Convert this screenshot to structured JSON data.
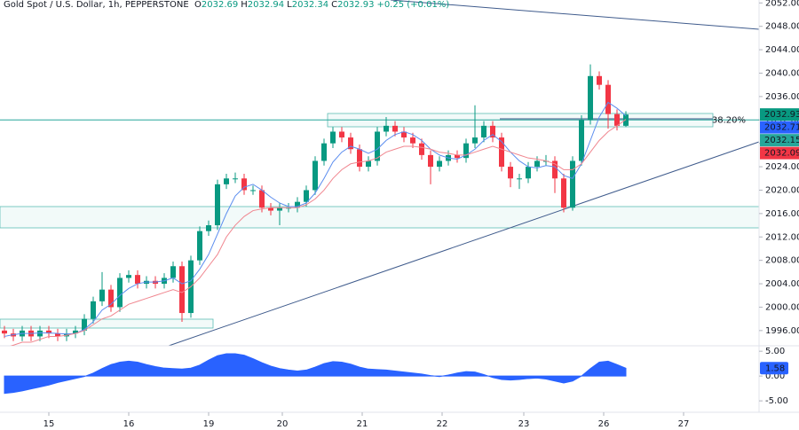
{
  "chart_data": {
    "type": "candlestick",
    "title": "Gold Spot / U.S. Dollar, 1h, PEPPERSTONE",
    "ohlc_legend": [
      {
        "label": "O",
        "value": 2032.69
      },
      {
        "label": "H",
        "value": 2032.94
      },
      {
        "label": "L",
        "value": 2032.34
      },
      {
        "label": "C",
        "value": 2032.93
      }
    ],
    "change": "+0.25 (+0.01%)",
    "up_color": "#089981",
    "down_color": "#f23645",
    "candles": [
      [
        1996,
        1996.8,
        1994.7,
        1995.5
      ],
      [
        1995.5,
        1996.3,
        1994.2,
        1995
      ],
      [
        1995,
        1996.8,
        1994.2,
        1996
      ],
      [
        1996,
        1996.8,
        1994.2,
        1995
      ],
      [
        1995,
        1996.8,
        1994.2,
        1996
      ],
      [
        1996,
        1996.8,
        1994.7,
        1995.5
      ],
      [
        1995.5,
        1996.3,
        1994.2,
        1995
      ],
      [
        1995,
        1996.3,
        1994.2,
        1995.5
      ],
      [
        1995.5,
        1996.8,
        1994.7,
        1996
      ],
      [
        1996,
        1998.8,
        1995.2,
        1998
      ],
      [
        1998,
        2001.8,
        1997.2,
        2001
      ],
      [
        2001,
        2006,
        2000.2,
        2003
      ],
      [
        2003,
        2003.8,
        1999.2,
        2000
      ],
      [
        2000,
        2005.8,
        1999.2,
        2005
      ],
      [
        2005,
        2006.3,
        2004.2,
        2005.5
      ],
      [
        2005.5,
        2006.3,
        2003.2,
        2004
      ],
      [
        2004,
        2005.3,
        2003.2,
        2004.5
      ],
      [
        2004.5,
        2005.3,
        2003.2,
        2004
      ],
      [
        2004,
        2005.8,
        2003.2,
        2005
      ],
      [
        2005,
        2007.8,
        2004.2,
        2007
      ],
      [
        2007,
        2007.8,
        1997.5,
        1999
      ],
      [
        1999,
        2008.8,
        1998.2,
        2008
      ],
      [
        2008,
        2013.8,
        2007.2,
        2013
      ],
      [
        2013,
        2014.8,
        2012.2,
        2014
      ],
      [
        2014,
        2021.8,
        2013.2,
        2021
      ],
      [
        2021,
        2022.8,
        2020.2,
        2022
      ],
      [
        2022,
        2023,
        2021.2,
        2022
      ],
      [
        2022,
        2022.8,
        2019.2,
        2020
      ],
      [
        2020,
        2020.8,
        2019.2,
        2020
      ],
      [
        2020,
        2020.8,
        2016.2,
        2017
      ],
      [
        2017,
        2017.8,
        2015.7,
        2016.5
      ],
      [
        2016.5,
        2017.8,
        2014,
        2017
      ],
      [
        2017,
        2017.8,
        2016.2,
        2017
      ],
      [
        2017,
        2018.8,
        2016.2,
        2018
      ],
      [
        2018,
        2020.8,
        2017.2,
        2020
      ],
      [
        2020,
        2025.8,
        2019.2,
        2025
      ],
      [
        2025,
        2028.8,
        2024.2,
        2028
      ],
      [
        2028,
        2030.8,
        2027.2,
        2030
      ],
      [
        2030,
        2030.8,
        2028.2,
        2029
      ],
      [
        2029,
        2029.8,
        2026.2,
        2027
      ],
      [
        2027,
        2027.8,
        2023.2,
        2024
      ],
      [
        2024,
        2025.8,
        2023.2,
        2025
      ],
      [
        2025,
        2030.8,
        2024.2,
        2030
      ],
      [
        2030,
        2032.5,
        2029.2,
        2031
      ],
      [
        2031,
        2031.8,
        2029.2,
        2030
      ],
      [
        2030,
        2030.8,
        2028.2,
        2029
      ],
      [
        2029,
        2029.8,
        2027.2,
        2028
      ],
      [
        2028,
        2028.8,
        2025.2,
        2026
      ],
      [
        2026,
        2026.8,
        2021,
        2024
      ],
      [
        2024,
        2025.8,
        2023.2,
        2025
      ],
      [
        2025,
        2026.8,
        2024.2,
        2026
      ],
      [
        2026,
        2026.8,
        2024.7,
        2025.5
      ],
      [
        2025.5,
        2028.8,
        2024.7,
        2028
      ],
      [
        2028,
        2034.5,
        2027.2,
        2029
      ],
      [
        2029,
        2031.8,
        2028.2,
        2031
      ],
      [
        2031,
        2031.8,
        2028.2,
        2029
      ],
      [
        2029,
        2029.8,
        2023.2,
        2024
      ],
      [
        2024,
        2024.8,
        2020.5,
        2022
      ],
      [
        2022,
        2022.8,
        2020.2,
        2022
      ],
      [
        2022,
        2024.8,
        2021.2,
        2024
      ],
      [
        2024,
        2025.8,
        2023.2,
        2025
      ],
      [
        2025,
        2026,
        2024.2,
        2025
      ],
      [
        2025,
        2025.8,
        2019.5,
        2022
      ],
      [
        2022,
        2022.8,
        2016.2,
        2017
      ],
      [
        2017,
        2025.8,
        2016.5,
        2025
      ],
      [
        2025,
        2032.8,
        2024.2,
        2032
      ],
      [
        2032,
        2041.5,
        2031.2,
        2039.5
      ],
      [
        2039.5,
        2040.3,
        2037.2,
        2038
      ],
      [
        2038,
        2038.8,
        2030.5,
        2033
      ],
      [
        2033,
        2033.8,
        2030.2,
        2031
      ],
      [
        2031,
        2033.5,
        2030.8,
        2032.93
      ]
    ],
    "moving_averages": [
      {
        "color": "#5b8def",
        "values": [
          1995,
          1995.3,
          1995.5,
          1995.5,
          1995.6,
          1995.6,
          1995.5,
          1995.4,
          1995.5,
          1996.2,
          1997.5,
          1999.5,
          2000.5,
          2002,
          2003.2,
          2004,
          2004.3,
          2004.3,
          2004.5,
          2005,
          2004,
          2004.5,
          2006.5,
          2009,
          2012.5,
          2016,
          2019,
          2020.5,
          2021,
          2020,
          2018.8,
          2017.8,
          2017.2,
          2017.2,
          2017.8,
          2019.5,
          2022,
          2024.8,
          2026.5,
          2027.5,
          2027,
          2026.3,
          2027,
          2028.5,
          2029.5,
          2030,
          2029.5,
          2028.5,
          2027,
          2026,
          2025.5,
          2025.3,
          2026,
          2027,
          2028.5,
          2029.5,
          2028.3,
          2026.5,
          2025,
          2024,
          2023.8,
          2024.2,
          2024,
          2022.5,
          2022,
          2024.5,
          2028.5,
          2032.5,
          2035,
          2034,
          2032.71
        ]
      },
      {
        "color": "#f0868f",
        "values": [
          1993,
          1993.5,
          1994,
          1994,
          1994.5,
          1995,
          1995,
          1995.2,
          1995.5,
          1996,
          1997,
          1998,
          1998.5,
          1999.5,
          2000.5,
          2001,
          2001.5,
          2002,
          2002.5,
          2003,
          2002.5,
          2003.5,
          2005,
          2007,
          2009,
          2012,
          2014,
          2015.5,
          2016.5,
          2016.8,
          2017,
          2017,
          2017,
          2017,
          2017.5,
          2018.5,
          2020,
          2022,
          2023.5,
          2024.5,
          2024.8,
          2025,
          2025.5,
          2026.5,
          2027,
          2027.5,
          2027.5,
          2027.3,
          2027,
          2026.5,
          2026.3,
          2026,
          2026,
          2026.5,
          2027,
          2027.5,
          2027,
          2026.5,
          2026,
          2025.5,
          2025.3,
          2025,
          2024.5,
          2023.5,
          2023.5,
          2024.5,
          2026.5,
          2028.5,
          2030,
          2031,
          2032.09
        ]
      }
    ],
    "ylim": [
      1993.4,
      2052.5
    ],
    "yticks": [
      {
        "value": 1996,
        "label": "1996.00"
      },
      {
        "value": 2000,
        "label": "2000.00"
      },
      {
        "value": 2004,
        "label": "2004.00"
      },
      {
        "value": 2008,
        "label": "2008.00"
      },
      {
        "value": 2012,
        "label": "2012.00"
      },
      {
        "value": 2016,
        "label": "2016.00"
      },
      {
        "value": 2020,
        "label": "2020.00"
      },
      {
        "value": 2024,
        "label": "2024.00"
      },
      {
        "value": 2028,
        "label": "2028.00"
      },
      {
        "value": 2032,
        "label": "2032.00"
      },
      {
        "value": 2036,
        "label": "2036.00"
      },
      {
        "value": 2040,
        "label": "2040.00"
      },
      {
        "value": 2044,
        "label": "2044.00"
      },
      {
        "value": 2048,
        "label": "2048.00"
      },
      {
        "value": 2052,
        "label": "2052.00"
      }
    ],
    "xlim": [
      -0.5,
      85
    ],
    "xticks": [
      {
        "value": 5,
        "label": "15"
      },
      {
        "value": 14,
        "label": "16"
      },
      {
        "value": 23,
        "label": "19"
      },
      {
        "value": 31.3,
        "label": "20"
      },
      {
        "value": 40.3,
        "label": "21"
      },
      {
        "value": 49.3,
        "label": "22"
      },
      {
        "value": 58.5,
        "label": "23"
      },
      {
        "value": 67.5,
        "label": "26"
      },
      {
        "value": 76.5,
        "label": "27"
      }
    ],
    "price_tags": [
      {
        "value": 2032.93,
        "color": "#089981"
      },
      {
        "value": 2032.71,
        "color": "#2962ff"
      },
      {
        "value": 2032.15,
        "color": "#26a69a"
      },
      {
        "value": 2032.09,
        "color": "#f23645"
      }
    ],
    "fib_level": {
      "label": "38.20%",
      "value": 2032.0,
      "color": "#26a69a"
    },
    "oscillator": {
      "color": "#2962ff",
      "ylim": [
        -7.3,
        6.1
      ],
      "yticks": [
        {
          "value": 5,
          "label": "5.00"
        },
        {
          "value": 0,
          "label": "0.00"
        },
        {
          "value": -5,
          "label": "-5.00"
        }
      ],
      "values": [
        -3.5,
        -3.3,
        -3,
        -2.6,
        -2.2,
        -1.8,
        -1.3,
        -0.9,
        -0.5,
        -0.1,
        0.6,
        1.5,
        2.3,
        2.8,
        3.0,
        2.8,
        2.3,
        1.9,
        1.6,
        1.5,
        1.4,
        1.6,
        2.2,
        3.2,
        4.1,
        4.5,
        4.5,
        4.2,
        3.5,
        2.7,
        2.0,
        1.5,
        1.2,
        1.0,
        1.2,
        1.8,
        2.5,
        2.9,
        2.8,
        2.4,
        1.8,
        1.4,
        1.3,
        1.2,
        1.0,
        0.8,
        0.6,
        0.4,
        0.1,
        -0.1,
        0.2,
        0.6,
        0.9,
        0.8,
        0.3,
        -0.3,
        -0.7,
        -0.8,
        -0.7,
        -0.5,
        -0.4,
        -0.6,
        -1.0,
        -1.4,
        -1.0,
        0.0,
        1.5,
        2.8,
        3.0,
        2.3,
        1.58
      ],
      "last_value": 1.58
    }
  }
}
